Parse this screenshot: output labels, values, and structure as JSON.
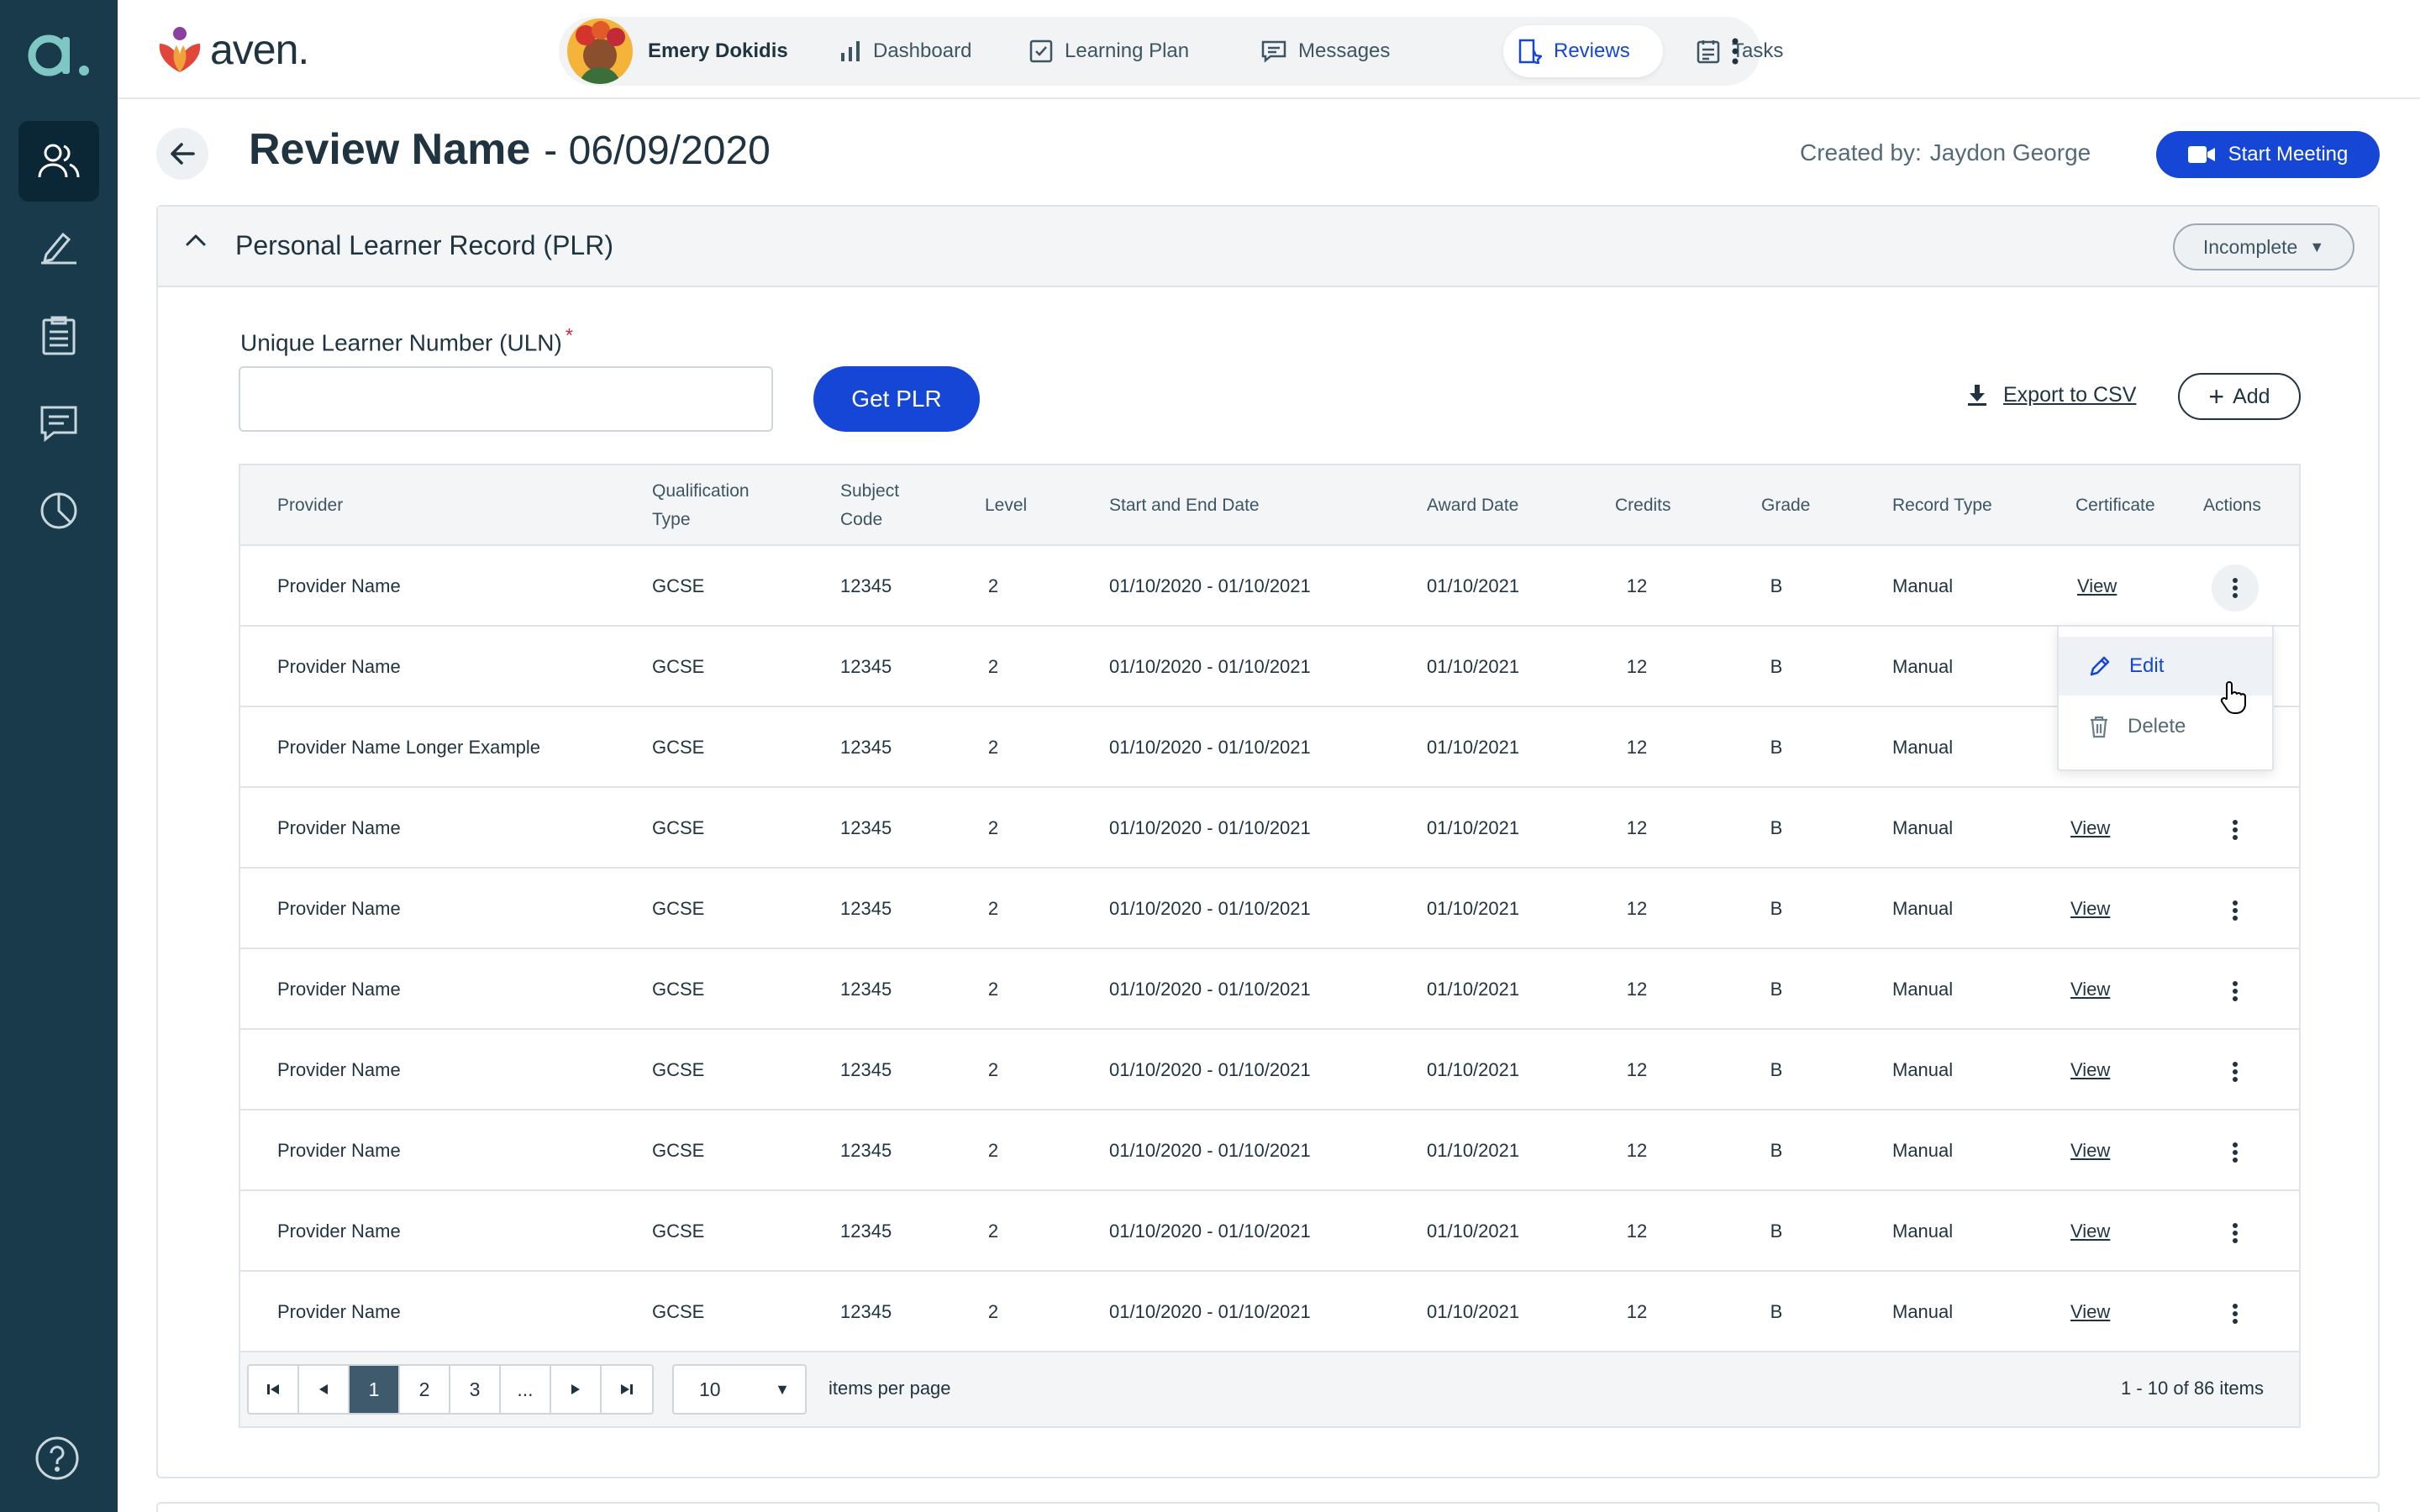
{
  "brand": {
    "name": "aven."
  },
  "rail": {
    "logo_letter": "a.",
    "items": [
      {
        "icon": "users-icon"
      },
      {
        "icon": "signature-pen-icon"
      },
      {
        "icon": "clipboard-icon"
      },
      {
        "icon": "chat-icon"
      },
      {
        "icon": "pie-chart-icon"
      }
    ],
    "help_icon": "help-circle-icon"
  },
  "header": {
    "learner_name": "Emery Dokidis",
    "tabs": [
      {
        "label": "Dashboard",
        "icon": "bar-chart-icon"
      },
      {
        "label": "Learning Plan",
        "icon": "checkbox-icon"
      },
      {
        "label": "Messages",
        "icon": "message-icon"
      },
      {
        "label": "Reviews",
        "icon": "review-star-icon",
        "active": true
      },
      {
        "label": "Tasks",
        "icon": "calendar-list-icon"
      }
    ]
  },
  "page": {
    "title": "Review Name",
    "date": "- 06/09/2020",
    "created_by_label": "Created by:",
    "created_by_name": "Jaydon George",
    "start_meeting_label": "Start Meeting"
  },
  "card": {
    "title": "Personal Learner Record (PLR)",
    "status": "Incomplete",
    "uln_label": "Unique Learner Number (ULN)",
    "uln_required": "*",
    "uln_value": "",
    "uln_placeholder": "",
    "get_plr_label": "Get PLR",
    "export_label": "Export to CSV",
    "add_label": "Add"
  },
  "table": {
    "columns": [
      "Provider",
      "Qualification Type",
      "Subject Code",
      "Level",
      "Start and End Date",
      "Award Date",
      "Credits",
      "Grade",
      "Record Type",
      "Certificate",
      "Actions"
    ],
    "rows": [
      {
        "provider": "Provider Name",
        "qualification": "GCSE",
        "subject_code": "12345",
        "level": "2",
        "dates": "01/10/2020  - 01/10/2021",
        "award_date": "01/10/2021",
        "credits": "12",
        "grade": "B",
        "record_type": "Manual",
        "certificate": "View"
      },
      {
        "provider": "Provider Name",
        "qualification": "GCSE",
        "subject_code": "12345",
        "level": "2",
        "dates": "01/10/2020  - 01/10/2021",
        "award_date": "01/10/2021",
        "credits": "12",
        "grade": "B",
        "record_type": "Manual",
        "certificate": ""
      },
      {
        "provider": "Provider Name Longer Example",
        "qualification": "GCSE",
        "subject_code": "12345",
        "level": "2",
        "dates": "01/10/2020  - 01/10/2021",
        "award_date": "01/10/2021",
        "credits": "12",
        "grade": "B",
        "record_type": "Manual",
        "certificate": ""
      },
      {
        "provider": "Provider Name",
        "qualification": "GCSE",
        "subject_code": "12345",
        "level": "2",
        "dates": "01/10/2020  - 01/10/2021",
        "award_date": "01/10/2021",
        "credits": "12",
        "grade": "B",
        "record_type": "Manual",
        "certificate": "View"
      },
      {
        "provider": "Provider Name",
        "qualification": "GCSE",
        "subject_code": "12345",
        "level": "2",
        "dates": "01/10/2020  - 01/10/2021",
        "award_date": "01/10/2021",
        "credits": "12",
        "grade": "B",
        "record_type": "Manual",
        "certificate": "View"
      },
      {
        "provider": "Provider Name",
        "qualification": "GCSE",
        "subject_code": "12345",
        "level": "2",
        "dates": "01/10/2020  - 01/10/2021",
        "award_date": "01/10/2021",
        "credits": "12",
        "grade": "B",
        "record_type": "Manual",
        "certificate": "View"
      },
      {
        "provider": "Provider Name",
        "qualification": "GCSE",
        "subject_code": "12345",
        "level": "2",
        "dates": "01/10/2020  - 01/10/2021",
        "award_date": "01/10/2021",
        "credits": "12",
        "grade": "B",
        "record_type": "Manual",
        "certificate": "View"
      },
      {
        "provider": "Provider Name",
        "qualification": "GCSE",
        "subject_code": "12345",
        "level": "2",
        "dates": "01/10/2020  - 01/10/2021",
        "award_date": "01/10/2021",
        "credits": "12",
        "grade": "B",
        "record_type": "Manual",
        "certificate": "View"
      },
      {
        "provider": "Provider Name",
        "qualification": "GCSE",
        "subject_code": "12345",
        "level": "2",
        "dates": "01/10/2020  - 01/10/2021",
        "award_date": "01/10/2021",
        "credits": "12",
        "grade": "B",
        "record_type": "Manual",
        "certificate": "View"
      },
      {
        "provider": "Provider Name",
        "qualification": "GCSE",
        "subject_code": "12345",
        "level": "2",
        "dates": "01/10/2020  - 01/10/2021",
        "award_date": "01/10/2021",
        "credits": "12",
        "grade": "B",
        "record_type": "Manual",
        "certificate": "View"
      }
    ],
    "actions_menu": {
      "edit_label": "Edit",
      "delete_label": "Delete"
    },
    "pagination": {
      "pages": [
        "1",
        "2",
        "3",
        "..."
      ],
      "current": "1",
      "per_page": "10",
      "per_page_label": "items per page",
      "items_count": "1 - 10 of 86 items"
    }
  },
  "colors": {
    "rail_bg": "#183a4b",
    "primary": "#1546d6",
    "text": "#1f3340",
    "required": "#d0243c"
  }
}
